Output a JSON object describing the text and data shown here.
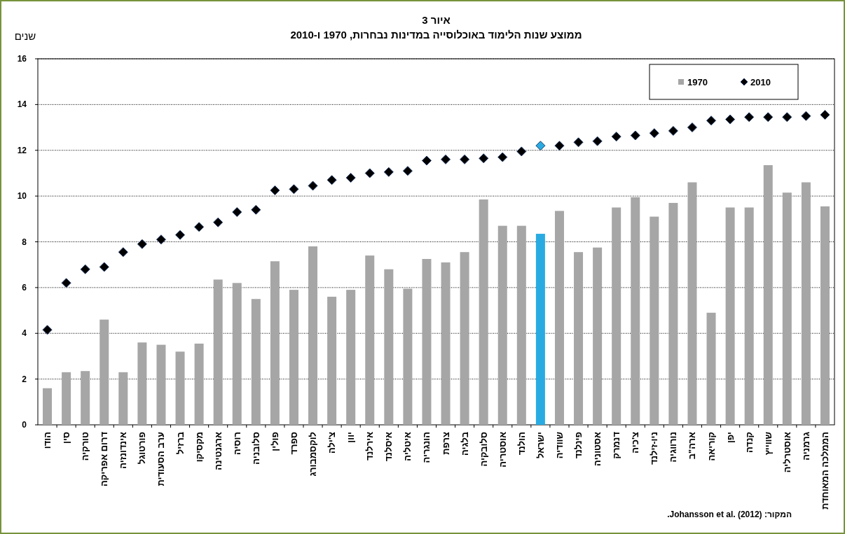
{
  "chart_data": {
    "type": "bar",
    "title": "איור 3",
    "subtitle": "ממוצע שנות הלימוד באוכלוסייה במדינות נבחרות, 1970 ו-2010",
    "ylabel": "שנים",
    "categories": [
      "הודו",
      "סין",
      "טורקיה",
      "דרום אפריקה",
      "אינדונזיה",
      "פורטוגל",
      "ערב הסעודית",
      "ברזיל",
      "מקסיקו",
      "ארגנטינה",
      "רוסיה",
      "סלובניה",
      "פולין",
      "ספרד",
      "לוקסמבורג",
      "צ'ילה",
      "יוון",
      "אירלנד",
      "איסלנד",
      "איטליה",
      "הונגריה",
      "צרפת",
      "בלגיה",
      "סלובקיה",
      "אוסטריה",
      "הולנד",
      "ישראל",
      "שוודיה",
      "פינלנד",
      "אסטוניה",
      "דנמרק",
      "צ'כיה",
      "ניו-זילנד",
      "נורווגיה",
      "ארה\"ב",
      "קוריאה",
      "יפן",
      "קנדה",
      "שווייץ",
      "אוסטרליה",
      "גרמניה",
      "הממלכה המאוחדת"
    ],
    "series": [
      {
        "name": "1970",
        "type": "bar",
        "color": "#a6a6a6",
        "colors": [
          "#a6a6a6",
          "#a6a6a6",
          "#a6a6a6",
          "#a6a6a6",
          "#a6a6a6",
          "#a6a6a6",
          "#a6a6a6",
          "#a6a6a6",
          "#a6a6a6",
          "#a6a6a6",
          "#a6a6a6",
          "#a6a6a6",
          "#a6a6a6",
          "#a6a6a6",
          "#a6a6a6",
          "#a6a6a6",
          "#a6a6a6",
          "#a6a6a6",
          "#a6a6a6",
          "#a6a6a6",
          "#a6a6a6",
          "#a6a6a6",
          "#a6a6a6",
          "#a6a6a6",
          "#a6a6a6",
          "#a6a6a6",
          "#29abe2",
          "#a6a6a6",
          "#a6a6a6",
          "#a6a6a6",
          "#a6a6a6",
          "#a6a6a6",
          "#a6a6a6",
          "#a6a6a6",
          "#a6a6a6",
          "#a6a6a6",
          "#a6a6a6",
          "#a6a6a6",
          "#a6a6a6",
          "#a6a6a6",
          "#a6a6a6",
          "#a6a6a6"
        ],
        "values": [
          1.6,
          2.3,
          2.35,
          4.6,
          2.3,
          3.6,
          3.5,
          3.2,
          3.55,
          6.35,
          6.2,
          5.5,
          7.15,
          5.9,
          7.8,
          5.6,
          5.9,
          7.4,
          6.8,
          5.95,
          7.25,
          7.1,
          7.55,
          9.85,
          8.7,
          8.7,
          8.35,
          9.35,
          7.55,
          7.75,
          9.5,
          9.95,
          9.1,
          9.7,
          10.6,
          4.9,
          9.5,
          9.5,
          11.35,
          10.15,
          10.6,
          9.55
        ]
      },
      {
        "name": "2010",
        "type": "scatter",
        "color": "#000000",
        "colors": [
          "#000000",
          "#000000",
          "#000000",
          "#000000",
          "#000000",
          "#000000",
          "#000000",
          "#000000",
          "#000000",
          "#000000",
          "#000000",
          "#000000",
          "#000000",
          "#000000",
          "#000000",
          "#000000",
          "#000000",
          "#000000",
          "#000000",
          "#000000",
          "#000000",
          "#000000",
          "#000000",
          "#000000",
          "#000000",
          "#000000",
          "#29abe2",
          "#000000",
          "#000000",
          "#000000",
          "#000000",
          "#000000",
          "#000000",
          "#000000",
          "#000000",
          "#000000",
          "#000000",
          "#000000",
          "#000000",
          "#000000",
          "#000000",
          "#000000"
        ],
        "values": [
          4.15,
          6.2,
          6.8,
          6.9,
          7.55,
          7.9,
          8.1,
          8.3,
          8.65,
          8.85,
          9.3,
          9.4,
          10.25,
          10.3,
          10.45,
          10.7,
          10.8,
          11.0,
          11.05,
          11.1,
          11.55,
          11.6,
          11.6,
          11.65,
          11.7,
          11.95,
          12.2,
          12.2,
          12.35,
          12.4,
          12.6,
          12.65,
          12.75,
          12.85,
          13.0,
          13.3,
          13.35,
          13.45,
          13.45,
          13.45,
          13.5,
          13.55
        ]
      }
    ],
    "ylim": [
      0,
      16
    ],
    "yticks": [
      0,
      2,
      4,
      6,
      8,
      10,
      12,
      14,
      16
    ],
    "grid": "y",
    "legend": "top right",
    "marker": "diamond",
    "annotations": [
      "המקור: Johansson et al. (2012)."
    ]
  }
}
